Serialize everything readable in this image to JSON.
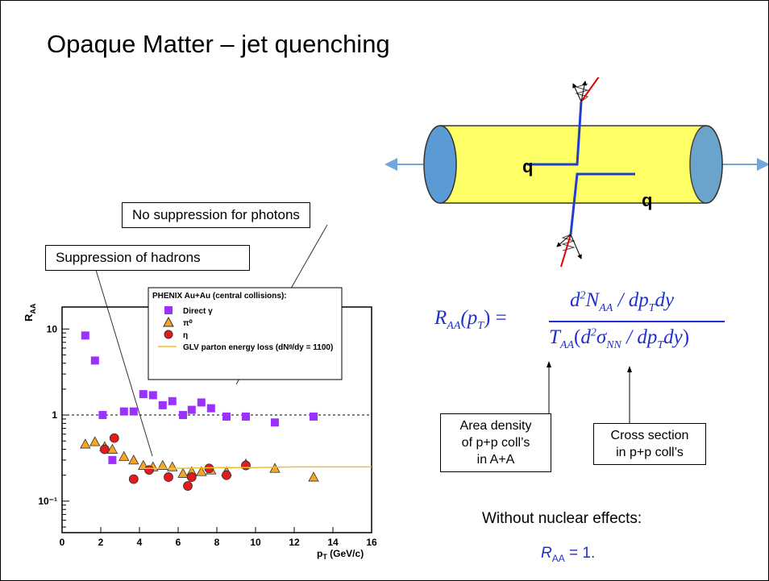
{
  "title": "Opaque Matter – jet quenching",
  "callouts": [
    "No suppression for photons",
    "Suppression of hadrons"
  ],
  "diagram_labels": [
    "q",
    "q"
  ],
  "formula": {
    "lhs": [
      "R",
      "AA",
      "(p",
      "T",
      ") ="
    ],
    "numerator": [
      "d",
      "2",
      "N",
      "AA",
      " / dp",
      "T",
      "dy"
    ],
    "denominator": [
      "T",
      "AA",
      "(",
      "d",
      "2",
      "σ",
      "NN",
      " / dp",
      "T",
      "dy",
      ")"
    ]
  },
  "boxes": [
    [
      "Area density",
      "of p+p coll’s",
      "in A+A"
    ],
    [
      "Cross section",
      "in p+p coll’s"
    ]
  ],
  "note": "Without nuclear effects:",
  "result": [
    "R",
    "AA",
    " = 1."
  ],
  "chart_data": {
    "type": "scatter",
    "legend_title": "PHENIX Au+Au (central collisions):",
    "x_label": [
      "p",
      "T",
      " (GeV/c)"
    ],
    "y_label": [
      "R",
      "AA"
    ],
    "xlim": [
      0,
      16
    ],
    "xticks": [
      0,
      2,
      4,
      6,
      8,
      10,
      12,
      14,
      16
    ],
    "ylim": [
      0.043,
      18
    ],
    "yticks": [
      {
        "value": 0.1,
        "label": "10⁻¹"
      },
      1,
      10
    ],
    "log_y": true,
    "series": [
      {
        "name": "Direct γ",
        "color": "#9b30ff",
        "marker": "square",
        "x": [
          1.2,
          1.7,
          2.1,
          2.6,
          3.2,
          3.7,
          4.2,
          4.7,
          5.2,
          5.7,
          6.25,
          6.7,
          7.2,
          7.7,
          8.5,
          9.5,
          11,
          13
        ],
        "values": [
          8.4,
          4.3,
          1.0,
          0.3,
          1.1,
          1.1,
          1.75,
          1.7,
          1.3,
          1.45,
          1.0,
          1.15,
          1.4,
          1.2,
          0.96,
          0.96,
          0.82,
          0.96
        ]
      },
      {
        "name": "π⁰",
        "color": "#f5a623",
        "marker": "triangle",
        "x": [
          1.2,
          1.7,
          2.2,
          2.6,
          3.2,
          3.7,
          4.2,
          4.7,
          5.2,
          5.7,
          6.25,
          6.7,
          7.2,
          7.7,
          8.5,
          9.5,
          11,
          13
        ],
        "values": [
          0.46,
          0.49,
          0.43,
          0.4,
          0.33,
          0.3,
          0.26,
          0.25,
          0.26,
          0.25,
          0.21,
          0.22,
          0.22,
          0.23,
          0.22,
          0.27,
          0.24,
          0.19
        ]
      },
      {
        "name": "η",
        "color": "#e41a1c",
        "marker": "circle",
        "x": [
          2.2,
          2.7,
          3.7,
          4.5,
          5.5,
          6.5,
          6.7,
          7.6,
          8.5,
          9.5
        ],
        "values": [
          0.4,
          0.54,
          0.18,
          0.23,
          0.19,
          0.15,
          0.19,
          0.24,
          0.2,
          0.26
        ]
      },
      {
        "name": "GLV parton energy loss (dNᵍ/dy = 1100)",
        "color": "#f0c030",
        "marker": "line",
        "x": [
          4,
          6,
          8,
          10,
          12,
          14,
          16
        ],
        "values": [
          0.24,
          0.24,
          0.245,
          0.245,
          0.25,
          0.25,
          0.25
        ]
      }
    ]
  }
}
